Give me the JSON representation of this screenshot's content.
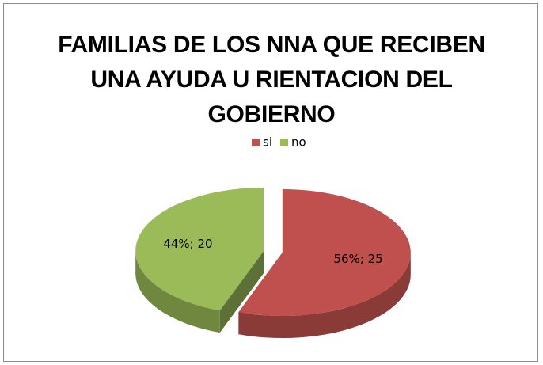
{
  "chart_data": {
    "type": "pie",
    "title": "FAMILIAS DE LOS NNA QUE RECIBEN UNA AYUDA U RIENTACION DEL GOBIERNO",
    "categories": [
      "si",
      "no"
    ],
    "values": [
      25,
      20
    ],
    "value_labels": [
      "56%; 25",
      "44%; 20"
    ],
    "colors": [
      "#c0504d",
      "#9bbb59"
    ],
    "legend": "top"
  }
}
